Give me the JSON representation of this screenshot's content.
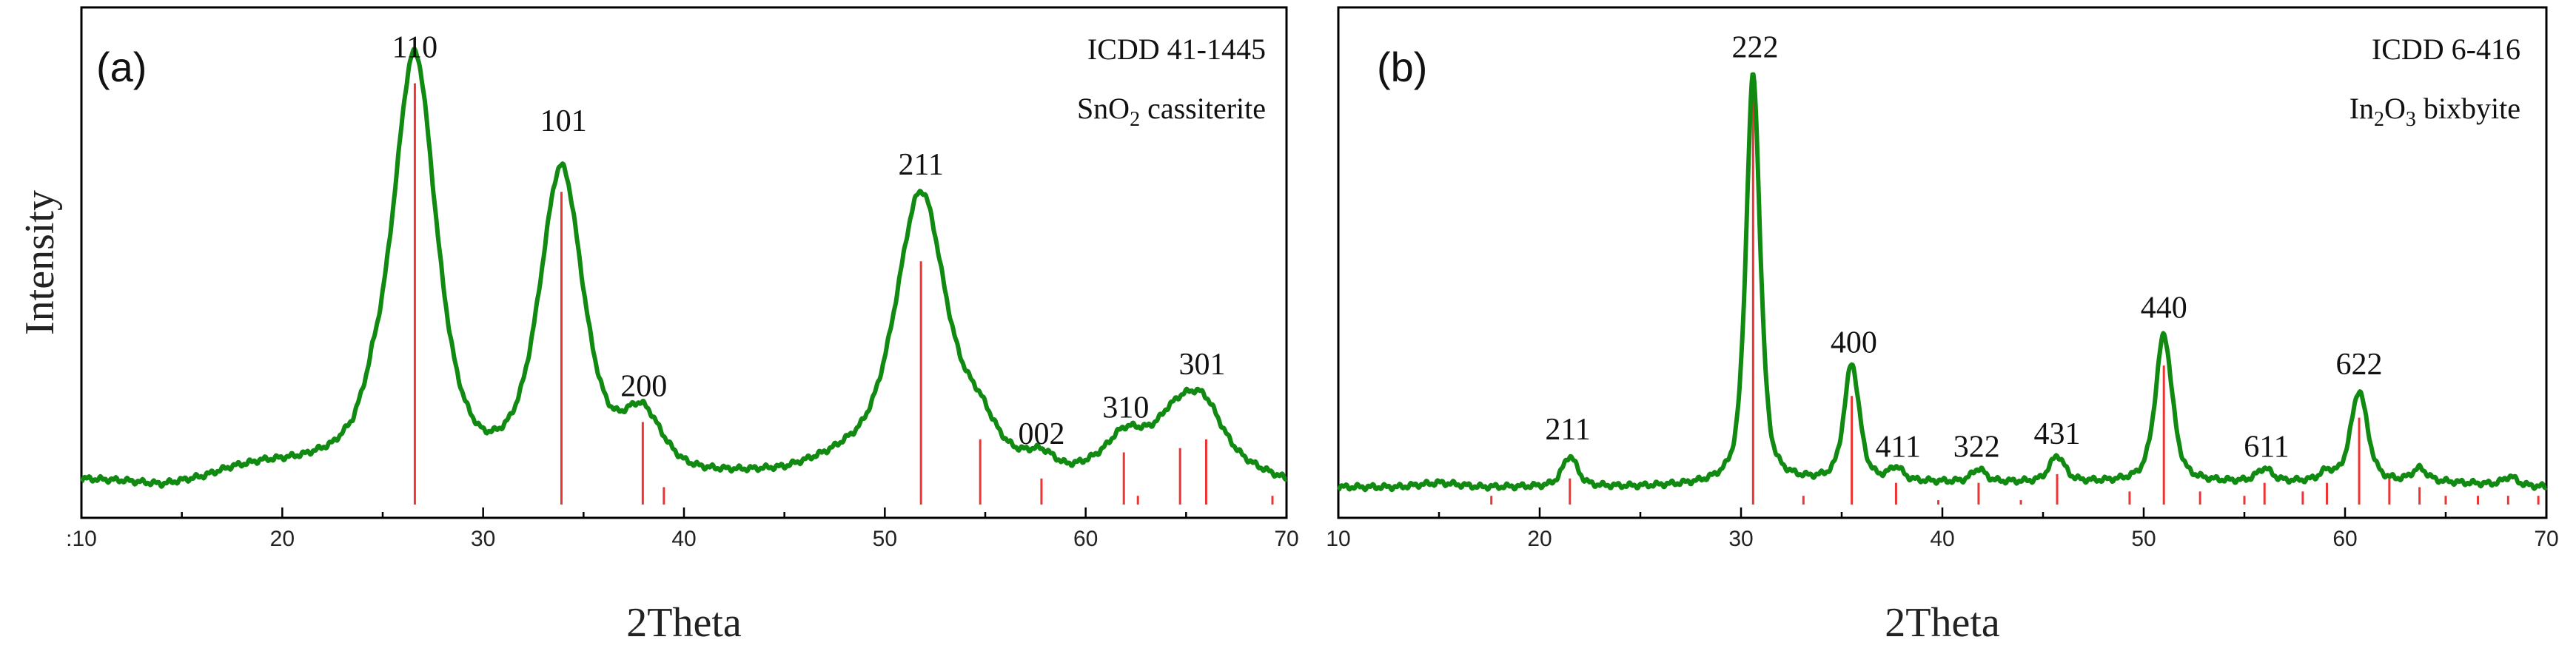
{
  "chart_data": [
    {
      "type": "line",
      "panel_label": "(a)",
      "reference_title": "ICDD 41-1445",
      "reference_phase_parts": [
        "SnO",
        "2",
        " cassiterite"
      ],
      "xlabel": "2Theta",
      "ylabel": "Intensity",
      "xlim": [
        10,
        70
      ],
      "ylim": [
        0,
        1
      ],
      "xticks": [
        10,
        20,
        30,
        40,
        50,
        60,
        70
      ],
      "xtick_labels": [
        ":10",
        "20",
        "30",
        "40",
        "50",
        "60",
        "70"
      ],
      "series": [
        {
          "name": "pattern",
          "color": "#118a11",
          "background": [
            [
              10,
              0.055
            ],
            [
              12,
              0.05
            ],
            [
              14,
              0.04
            ],
            [
              16,
              0.055
            ],
            [
              17.5,
              0.075
            ],
            [
              19,
              0.085
            ],
            [
              21,
              0.085
            ],
            [
              22.5,
              0.09
            ],
            [
              23.5,
              0.11
            ],
            [
              24.5,
              0.17
            ],
            [
              30,
              0.06
            ],
            [
              40,
              0.05
            ],
            [
              45,
              0.06
            ],
            [
              48,
              0.09
            ],
            [
              57,
              0.07
            ],
            [
              59,
              0.06
            ],
            [
              61,
              0.08
            ],
            [
              64,
              0.14
            ],
            [
              68,
              0.08
            ],
            [
              70,
              0.05
            ]
          ],
          "peaks": [
            {
              "center": 26.6,
              "height": 0.9,
              "width": 1.25
            },
            {
              "center": 33.9,
              "height": 0.7,
              "width": 1.3
            },
            {
              "center": 37.9,
              "height": 0.13,
              "width": 1.2
            },
            {
              "center": 51.8,
              "height": 0.63,
              "width": 1.5
            },
            {
              "center": 54.7,
              "height": 0.08,
              "width": 1.0
            },
            {
              "center": 57.8,
              "height": 0.03,
              "width": 0.8
            },
            {
              "center": 61.9,
              "height": 0.06,
              "width": 1.1
            },
            {
              "center": 64.7,
              "height": 0.06,
              "width": 1.0
            },
            {
              "center": 65.9,
              "height": 0.11,
              "width": 1.1
            }
          ]
        }
      ],
      "reference_sticks": [
        {
          "x": 26.6,
          "i": 0.97
        },
        {
          "x": 33.9,
          "i": 0.72
        },
        {
          "x": 37.95,
          "i": 0.19
        },
        {
          "x": 39.0,
          "i": 0.04
        },
        {
          "x": 51.8,
          "i": 0.56
        },
        {
          "x": 54.75,
          "i": 0.15
        },
        {
          "x": 57.8,
          "i": 0.06
        },
        {
          "x": 61.9,
          "i": 0.12
        },
        {
          "x": 62.6,
          "i": 0.02
        },
        {
          "x": 64.7,
          "i": 0.13
        },
        {
          "x": 66.0,
          "i": 0.15
        },
        {
          "x": 69.3,
          "i": 0.02
        }
      ],
      "annotations": [
        {
          "text": "110",
          "x": 26.6,
          "y": 1.03
        },
        {
          "text": "101",
          "x": 34.0,
          "y": 0.86
        },
        {
          "text": "200",
          "x": 38.0,
          "y": 0.25
        },
        {
          "text": "211",
          "x": 51.8,
          "y": 0.76
        },
        {
          "text": "002",
          "x": 57.8,
          "y": 0.14
        },
        {
          "text": "310",
          "x": 62.0,
          "y": 0.2
        },
        {
          "text": "301",
          "x": 65.8,
          "y": 0.3
        }
      ]
    },
    {
      "type": "line",
      "panel_label": "(b)",
      "reference_title": "ICDD 6-416",
      "reference_phase_parts": [
        "In",
        "2",
        "O",
        "3",
        " bixbyite"
      ],
      "xlabel": "2Theta",
      "ylabel": "",
      "xlim": [
        10,
        70
      ],
      "ylim": [
        0,
        1
      ],
      "xticks": [
        10,
        20,
        30,
        40,
        50,
        60,
        70
      ],
      "xtick_labels": [
        "10",
        "20",
        "30",
        "40",
        "50",
        "60",
        "70"
      ],
      "series": [
        {
          "name": "pattern",
          "color": "#118a11",
          "background": [
            [
              10,
              0.04
            ],
            [
              13,
              0.04
            ],
            [
              15,
              0.05
            ],
            [
              17,
              0.04
            ],
            [
              20,
              0.04
            ],
            [
              25,
              0.04
            ],
            [
              35,
              0.05
            ],
            [
              45,
              0.05
            ],
            [
              55,
              0.05
            ],
            [
              65,
              0.05
            ],
            [
              70,
              0.04
            ]
          ],
          "peaks": [
            {
              "center": 21.5,
              "height": 0.07,
              "width": 0.45
            },
            {
              "center": 30.6,
              "height": 0.94,
              "width": 0.42
            },
            {
              "center": 35.5,
              "height": 0.27,
              "width": 0.45
            },
            {
              "center": 37.7,
              "height": 0.03,
              "width": 0.4
            },
            {
              "center": 41.8,
              "height": 0.03,
              "width": 0.4
            },
            {
              "center": 45.7,
              "height": 0.06,
              "width": 0.45
            },
            {
              "center": 51.0,
              "height": 0.34,
              "width": 0.5
            },
            {
              "center": 56.0,
              "height": 0.03,
              "width": 0.45
            },
            {
              "center": 59.1,
              "height": 0.02,
              "width": 0.4
            },
            {
              "center": 60.7,
              "height": 0.21,
              "width": 0.5
            },
            {
              "center": 63.7,
              "height": 0.03,
              "width": 0.45
            },
            {
              "center": 68.2,
              "height": 0.02,
              "width": 0.4
            }
          ]
        }
      ],
      "reference_sticks": [
        {
          "x": 17.6,
          "i": 0.02
        },
        {
          "x": 21.5,
          "i": 0.06
        },
        {
          "x": 30.6,
          "i": 0.95
        },
        {
          "x": 33.1,
          "i": 0.02
        },
        {
          "x": 35.5,
          "i": 0.25
        },
        {
          "x": 37.7,
          "i": 0.05
        },
        {
          "x": 39.8,
          "i": 0.01
        },
        {
          "x": 41.8,
          "i": 0.05
        },
        {
          "x": 43.9,
          "i": 0.01
        },
        {
          "x": 45.7,
          "i": 0.07
        },
        {
          "x": 49.3,
          "i": 0.03
        },
        {
          "x": 51.0,
          "i": 0.32
        },
        {
          "x": 52.8,
          "i": 0.03
        },
        {
          "x": 55.0,
          "i": 0.02
        },
        {
          "x": 56.0,
          "i": 0.05
        },
        {
          "x": 57.9,
          "i": 0.03
        },
        {
          "x": 59.1,
          "i": 0.05
        },
        {
          "x": 60.7,
          "i": 0.2
        },
        {
          "x": 62.2,
          "i": 0.06
        },
        {
          "x": 63.7,
          "i": 0.04
        },
        {
          "x": 65.0,
          "i": 0.02
        },
        {
          "x": 66.6,
          "i": 0.02
        },
        {
          "x": 68.1,
          "i": 0.02
        },
        {
          "x": 69.6,
          "i": 0.02
        }
      ],
      "annotations": [
        {
          "text": "222",
          "x": 30.7,
          "y": 1.03
        },
        {
          "text": "211",
          "x": 21.4,
          "y": 0.15
        },
        {
          "text": "400",
          "x": 35.6,
          "y": 0.35
        },
        {
          "text": "411",
          "x": 37.8,
          "y": 0.11
        },
        {
          "text": "322",
          "x": 41.7,
          "y": 0.11
        },
        {
          "text": "431",
          "x": 45.7,
          "y": 0.14
        },
        {
          "text": "440",
          "x": 51.0,
          "y": 0.43
        },
        {
          "text": "611",
          "x": 56.1,
          "y": 0.11
        },
        {
          "text": "622",
          "x": 60.7,
          "y": 0.3
        }
      ]
    }
  ]
}
